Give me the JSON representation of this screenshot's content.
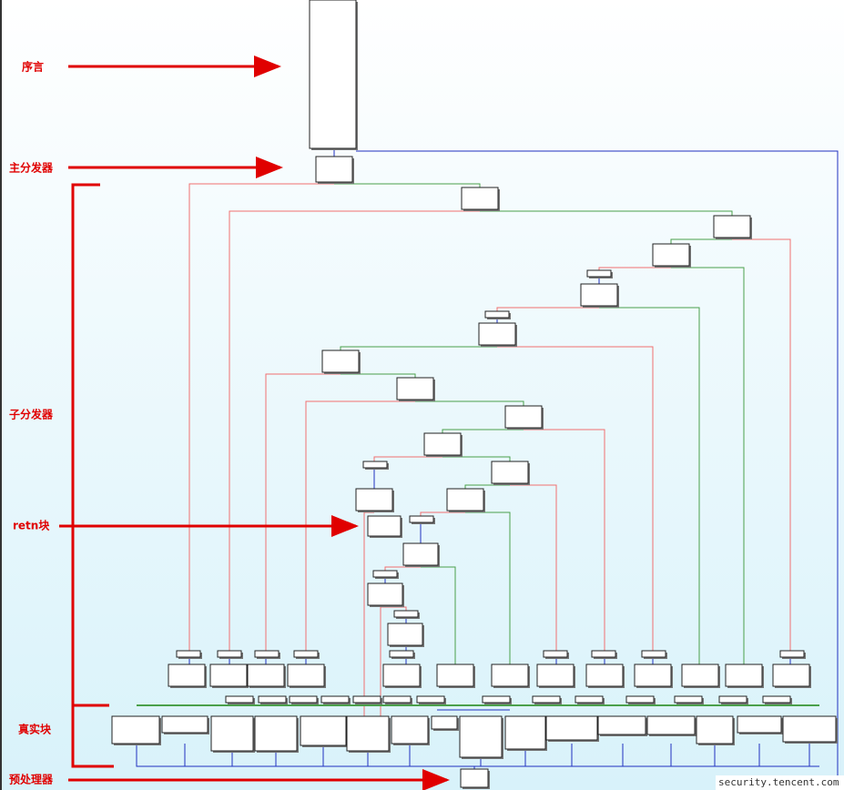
{
  "labels": {
    "prologue": "序言",
    "main_dispatcher": "主分发器",
    "sub_dispatcher": "子分发器",
    "retn_block": "retn块",
    "real_blocks": "真实块",
    "preprocessor": "预处理器"
  },
  "watermark": "security.tencent.com"
}
